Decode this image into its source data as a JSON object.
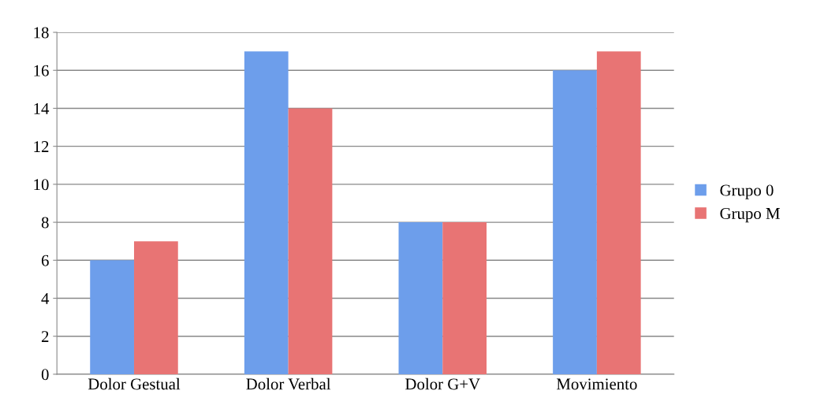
{
  "chart_data": {
    "type": "bar",
    "categories": [
      "Dolor Gestual",
      "Dolor Verbal",
      "Dolor G+V",
      "Movimiento"
    ],
    "series": [
      {
        "name": "Grupo 0",
        "color": "#6d9eeb",
        "values": [
          6,
          17,
          8,
          16
        ]
      },
      {
        "name": "Grupo M",
        "color": "#e87474",
        "values": [
          7,
          14,
          8,
          17
        ]
      }
    ],
    "ylim": [
      0,
      18
    ],
    "yticks": [
      0,
      2,
      4,
      6,
      8,
      10,
      12,
      14,
      16,
      18
    ],
    "grid": "y",
    "legend": "right"
  }
}
